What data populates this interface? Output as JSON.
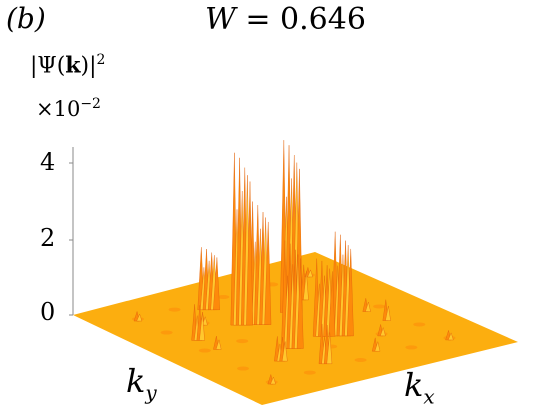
{
  "panel_label": "(b)",
  "title": {
    "prefix": "W = ",
    "value": "0.646"
  },
  "zlabel": {
    "base": "|Ψ(",
    "bold": "k",
    "close": ")|",
    "exp": "2"
  },
  "multiplier": {
    "base": "×10",
    "exp": "−2"
  },
  "xlabel": {
    "base": "k",
    "sub": "x"
  },
  "ylabel": {
    "base": "k",
    "sub": "y"
  },
  "colors": {
    "surface_base": "#fcae0f",
    "surface_mid": "#fd8a0b",
    "surface_high": "#ffc82d",
    "surface_dark": "#e2620a",
    "axis": "#8a8a8a"
  },
  "chart_data": {
    "type": "surface",
    "title": "W = 0.646",
    "zlabel": "|Ψ(k)|²",
    "xlabel": "k_x",
    "ylabel": "k_y",
    "z_scale": "×10^-2",
    "zlim": [
      0,
      4.8
    ],
    "z_ticks": [
      0,
      2,
      4
    ],
    "grid": false,
    "peaks": [
      {
        "x": 0.37,
        "y": 0.4,
        "z": 4.5
      },
      {
        "x": 0.37,
        "y": 0.6,
        "z": 4.5
      },
      {
        "x": 0.4,
        "y": 0.45,
        "z": 3.2
      },
      {
        "x": 0.63,
        "y": 0.4,
        "z": 2.8
      },
      {
        "x": 0.63,
        "y": 0.6,
        "z": 2.7
      },
      {
        "x": 0.6,
        "y": 0.55,
        "z": 2.0
      },
      {
        "x": 0.2,
        "y": 0.4,
        "z": 1.6
      },
      {
        "x": 0.8,
        "y": 0.4,
        "z": 1.0
      },
      {
        "x": 0.3,
        "y": 0.7,
        "z": 0.9
      },
      {
        "x": 0.4,
        "y": 0.2,
        "z": 0.9
      },
      {
        "x": 0.7,
        "y": 0.3,
        "z": 0.6
      },
      {
        "x": 0.6,
        "y": 0.8,
        "z": 0.5
      },
      {
        "x": 0.2,
        "y": 0.6,
        "z": 0.3
      },
      {
        "x": 0.8,
        "y": 0.6,
        "z": 0.3
      },
      {
        "x": 0.5,
        "y": 0.2,
        "z": 0.3
      },
      {
        "x": 0.5,
        "y": 0.8,
        "z": 0.3
      },
      {
        "x": 0.15,
        "y": 0.15,
        "z": 0.2
      },
      {
        "x": 0.85,
        "y": 0.85,
        "z": 0.2
      },
      {
        "x": 0.85,
        "y": 0.15,
        "z": 0.2
      },
      {
        "x": 0.15,
        "y": 0.85,
        "z": 0.2
      },
      {
        "x": 0.3,
        "y": 0.3,
        "z": 0.25
      },
      {
        "x": 0.7,
        "y": 0.7,
        "z": 0.25
      }
    ]
  }
}
